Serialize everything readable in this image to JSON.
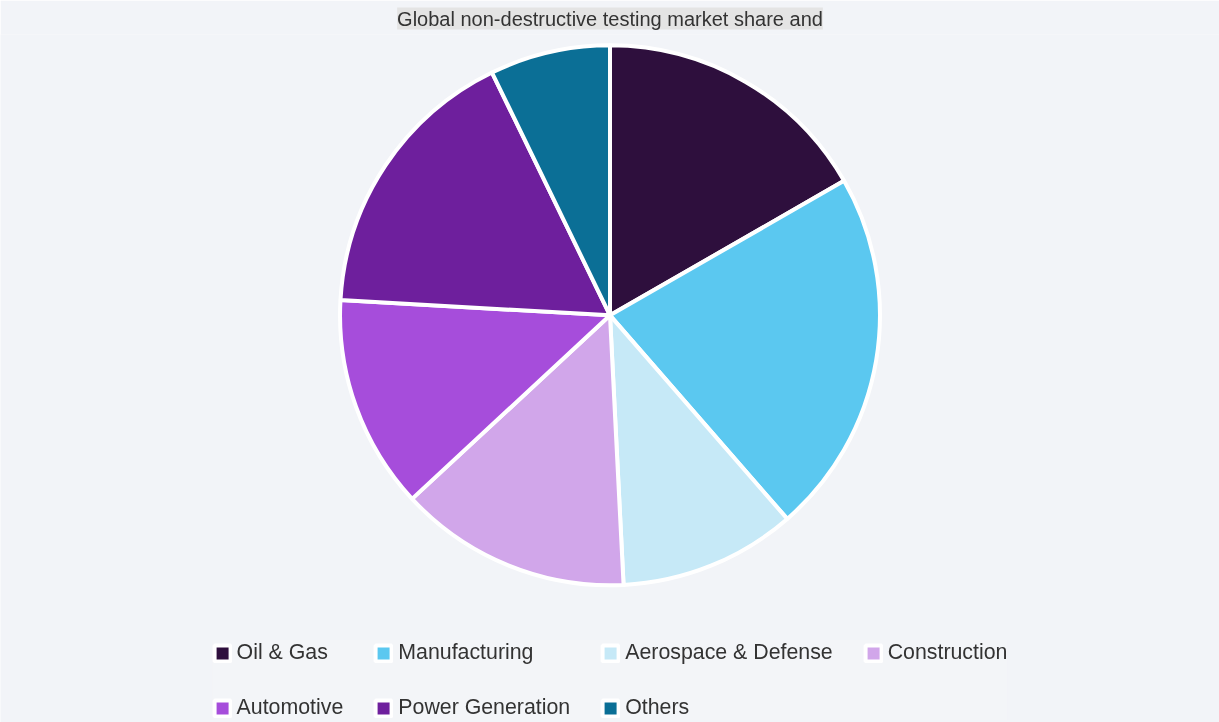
{
  "chart_data": {
    "type": "pie",
    "categories": [
      "Oil & Gas",
      "Manufacturing",
      "Aerospace & Defense",
      "Construction",
      "Automotive",
      "Power Generation",
      "Others"
    ],
    "values": [
      16.7,
      21.9,
      10.6,
      13.9,
      12.8,
      16.9,
      7.2
    ],
    "colors": [
      "#2e0f3d",
      "#5bc8f0",
      "#c6e9f7",
      "#d1a6ea",
      "#a64ddb",
      "#6e1f9d",
      "#0b6f96"
    ],
    "legend": "bottom",
    "annotations": [
      "Global non-destructive testing market share and"
    ]
  }
}
